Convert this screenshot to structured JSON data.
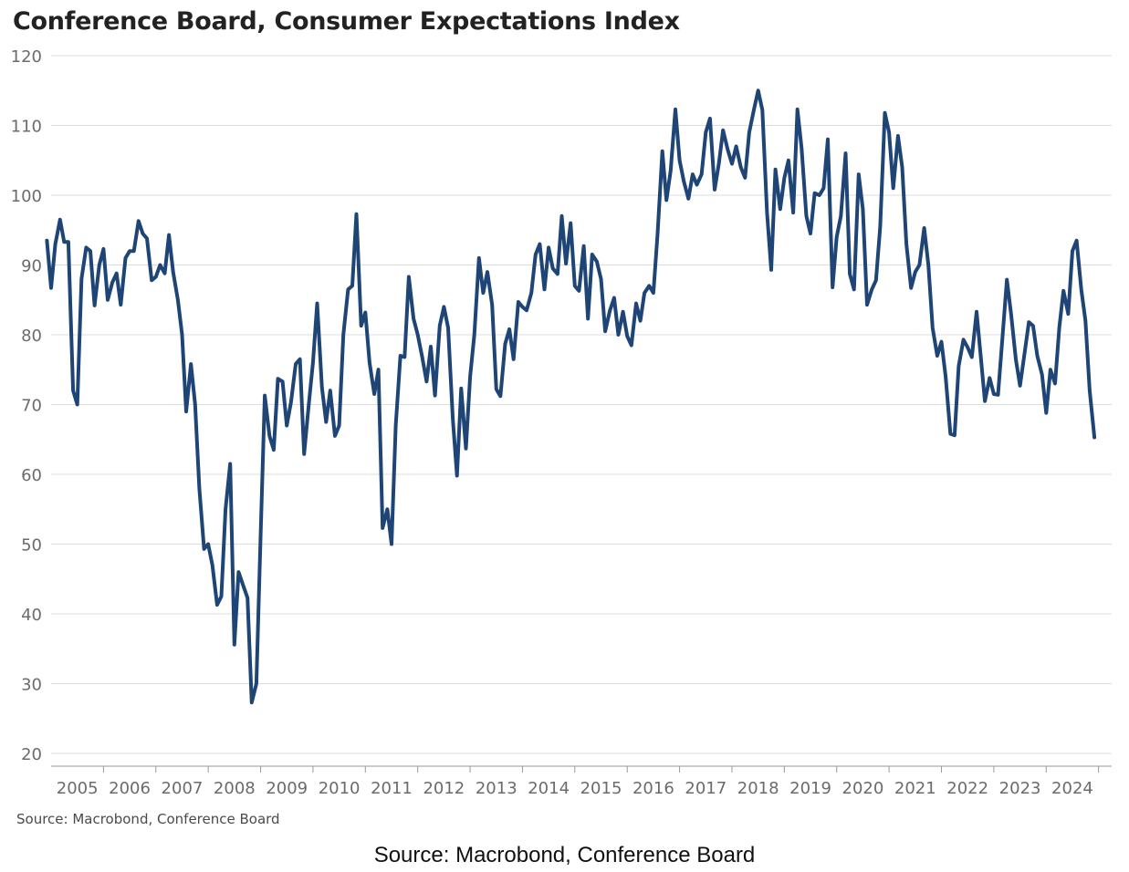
{
  "title": "Conference Board, Consumer Expectations Index",
  "source_note": "Source: Macrobond, Conference Board",
  "caption": "Source: Macrobond, Conference Board",
  "chart_data": {
    "type": "line",
    "title": "Conference Board, Consumer Expectations Index",
    "xlabel": "",
    "ylabel": "",
    "xlim": [
      2005,
      2025.25
    ],
    "ylim": [
      20,
      120
    ],
    "yticks": [
      20,
      30,
      40,
      50,
      60,
      70,
      80,
      90,
      100,
      110,
      120
    ],
    "year_labels": [
      "2005",
      "2006",
      "2007",
      "2008",
      "2009",
      "2010",
      "2011",
      "2012",
      "2013",
      "2014",
      "2015",
      "2016",
      "2017",
      "2018",
      "2019",
      "2020",
      "2021",
      "2022",
      "2023",
      "2024"
    ],
    "grid": "horizontal",
    "legend": "none",
    "series": [
      {
        "color": "#1f4576",
        "points": [
          [
            2004.92,
            93.5
          ],
          [
            2005.0,
            86.7
          ],
          [
            2005.08,
            93.0
          ],
          [
            2005.17,
            96.5
          ],
          [
            2005.25,
            93.3
          ],
          [
            2005.33,
            93.3
          ],
          [
            2005.42,
            72.0
          ],
          [
            2005.5,
            70.0
          ],
          [
            2005.58,
            88.0
          ],
          [
            2005.67,
            92.5
          ],
          [
            2005.75,
            92.0
          ],
          [
            2005.83,
            84.2
          ],
          [
            2005.92,
            90.0
          ],
          [
            2006.0,
            92.3
          ],
          [
            2006.08,
            85.0
          ],
          [
            2006.17,
            87.5
          ],
          [
            2006.25,
            88.8
          ],
          [
            2006.33,
            84.3
          ],
          [
            2006.42,
            91.0
          ],
          [
            2006.5,
            92.0
          ],
          [
            2006.58,
            92.0
          ],
          [
            2006.67,
            96.3
          ],
          [
            2006.75,
            94.5
          ],
          [
            2006.83,
            93.8
          ],
          [
            2006.92,
            87.8
          ],
          [
            2007.0,
            88.3
          ],
          [
            2007.08,
            90.0
          ],
          [
            2007.17,
            88.8
          ],
          [
            2007.25,
            94.3
          ],
          [
            2007.33,
            89.0
          ],
          [
            2007.42,
            85.0
          ],
          [
            2007.5,
            80.0
          ],
          [
            2007.58,
            69.0
          ],
          [
            2007.67,
            75.8
          ],
          [
            2007.75,
            70.0
          ],
          [
            2007.83,
            58.0
          ],
          [
            2007.92,
            49.3
          ],
          [
            2008.0,
            50.0
          ],
          [
            2008.08,
            47.0
          ],
          [
            2008.17,
            41.3
          ],
          [
            2008.25,
            42.5
          ],
          [
            2008.33,
            55.0
          ],
          [
            2008.42,
            61.5
          ],
          [
            2008.5,
            35.6
          ],
          [
            2008.58,
            46.0
          ],
          [
            2008.67,
            44.0
          ],
          [
            2008.75,
            42.3
          ],
          [
            2008.83,
            27.3
          ],
          [
            2008.92,
            30.0
          ],
          [
            2009.0,
            51.0
          ],
          [
            2009.08,
            71.3
          ],
          [
            2009.17,
            65.5
          ],
          [
            2009.25,
            63.5
          ],
          [
            2009.33,
            73.7
          ],
          [
            2009.42,
            73.3
          ],
          [
            2009.5,
            67.0
          ],
          [
            2009.58,
            70.3
          ],
          [
            2009.67,
            75.8
          ],
          [
            2009.75,
            76.5
          ],
          [
            2009.83,
            62.9
          ],
          [
            2009.92,
            70.0
          ],
          [
            2010.0,
            76.0
          ],
          [
            2010.08,
            84.5
          ],
          [
            2010.17,
            72.5
          ],
          [
            2010.25,
            67.5
          ],
          [
            2010.33,
            72.0
          ],
          [
            2010.42,
            65.5
          ],
          [
            2010.5,
            67.0
          ],
          [
            2010.58,
            80.0
          ],
          [
            2010.67,
            86.5
          ],
          [
            2010.75,
            87.0
          ],
          [
            2010.83,
            97.3
          ],
          [
            2010.92,
            81.3
          ],
          [
            2011.0,
            83.2
          ],
          [
            2011.08,
            76.0
          ],
          [
            2011.17,
            71.5
          ],
          [
            2011.25,
            75.0
          ],
          [
            2011.33,
            52.3
          ],
          [
            2011.42,
            55.0
          ],
          [
            2011.5,
            50.0
          ],
          [
            2011.58,
            67.0
          ],
          [
            2011.67,
            77.0
          ],
          [
            2011.75,
            76.8
          ],
          [
            2011.83,
            88.3
          ],
          [
            2011.92,
            82.3
          ],
          [
            2012.0,
            80.0
          ],
          [
            2012.08,
            77.0
          ],
          [
            2012.17,
            73.3
          ],
          [
            2012.25,
            78.3
          ],
          [
            2012.33,
            71.3
          ],
          [
            2012.42,
            81.3
          ],
          [
            2012.5,
            84.0
          ],
          [
            2012.58,
            81.0
          ],
          [
            2012.67,
            68.0
          ],
          [
            2012.75,
            59.8
          ],
          [
            2012.83,
            72.3
          ],
          [
            2012.92,
            63.7
          ],
          [
            2013.0,
            74.0
          ],
          [
            2013.08,
            80.0
          ],
          [
            2013.17,
            91.0
          ],
          [
            2013.25,
            86.0
          ],
          [
            2013.33,
            89.0
          ],
          [
            2013.42,
            84.3
          ],
          [
            2013.5,
            72.2
          ],
          [
            2013.58,
            71.2
          ],
          [
            2013.67,
            78.7
          ],
          [
            2013.75,
            80.8
          ],
          [
            2013.83,
            76.5
          ],
          [
            2013.92,
            84.7
          ],
          [
            2014.0,
            84.0
          ],
          [
            2014.08,
            83.5
          ],
          [
            2014.17,
            86.0
          ],
          [
            2014.25,
            91.5
          ],
          [
            2014.33,
            93.0
          ],
          [
            2014.42,
            86.5
          ],
          [
            2014.5,
            92.5
          ],
          [
            2014.58,
            89.5
          ],
          [
            2014.67,
            88.7
          ],
          [
            2014.75,
            97.0
          ],
          [
            2014.83,
            90.2
          ],
          [
            2014.92,
            96.0
          ],
          [
            2015.0,
            87.0
          ],
          [
            2015.08,
            86.3
          ],
          [
            2015.17,
            92.7
          ],
          [
            2015.25,
            82.3
          ],
          [
            2015.33,
            91.5
          ],
          [
            2015.42,
            90.5
          ],
          [
            2015.5,
            88.0
          ],
          [
            2015.58,
            80.5
          ],
          [
            2015.67,
            83.5
          ],
          [
            2015.75,
            85.3
          ],
          [
            2015.83,
            80.0
          ],
          [
            2015.92,
            83.3
          ],
          [
            2016.0,
            79.8
          ],
          [
            2016.08,
            78.5
          ],
          [
            2016.17,
            84.5
          ],
          [
            2016.25,
            82.0
          ],
          [
            2016.33,
            86.0
          ],
          [
            2016.42,
            87.0
          ],
          [
            2016.5,
            86.0
          ],
          [
            2016.58,
            94.5
          ],
          [
            2016.67,
            106.3
          ],
          [
            2016.75,
            99.3
          ],
          [
            2016.83,
            103.5
          ],
          [
            2016.92,
            112.3
          ],
          [
            2017.0,
            105.0
          ],
          [
            2017.08,
            102.0
          ],
          [
            2017.17,
            99.5
          ],
          [
            2017.25,
            103.0
          ],
          [
            2017.33,
            101.5
          ],
          [
            2017.42,
            103.0
          ],
          [
            2017.5,
            109.0
          ],
          [
            2017.58,
            111.0
          ],
          [
            2017.67,
            100.8
          ],
          [
            2017.75,
            104.5
          ],
          [
            2017.83,
            109.3
          ],
          [
            2017.92,
            106.5
          ],
          [
            2018.0,
            104.5
          ],
          [
            2018.08,
            107.0
          ],
          [
            2018.17,
            104.0
          ],
          [
            2018.25,
            102.5
          ],
          [
            2018.33,
            109.0
          ],
          [
            2018.42,
            112.3
          ],
          [
            2018.5,
            115.0
          ],
          [
            2018.58,
            112.2
          ],
          [
            2018.67,
            97.5
          ],
          [
            2018.75,
            89.3
          ],
          [
            2018.83,
            103.7
          ],
          [
            2018.92,
            98.0
          ],
          [
            2019.0,
            102.5
          ],
          [
            2019.08,
            105.0
          ],
          [
            2019.17,
            97.5
          ],
          [
            2019.25,
            112.3
          ],
          [
            2019.33,
            106.7
          ],
          [
            2019.42,
            97.0
          ],
          [
            2019.5,
            94.5
          ],
          [
            2019.58,
            100.3
          ],
          [
            2019.67,
            100.0
          ],
          [
            2019.75,
            101.0
          ],
          [
            2019.83,
            108.0
          ],
          [
            2019.92,
            86.8
          ],
          [
            2020.0,
            94.0
          ],
          [
            2020.08,
            97.0
          ],
          [
            2020.17,
            106.0
          ],
          [
            2020.25,
            88.7
          ],
          [
            2020.33,
            86.5
          ],
          [
            2020.42,
            103.0
          ],
          [
            2020.5,
            98.0
          ],
          [
            2020.58,
            84.3
          ],
          [
            2020.67,
            86.5
          ],
          [
            2020.75,
            87.8
          ],
          [
            2020.83,
            95.5
          ],
          [
            2020.92,
            111.8
          ],
          [
            2021.0,
            109.0
          ],
          [
            2021.08,
            101.0
          ],
          [
            2021.17,
            108.5
          ],
          [
            2021.25,
            104.0
          ],
          [
            2021.33,
            93.0
          ],
          [
            2021.42,
            86.7
          ],
          [
            2021.5,
            89.0
          ],
          [
            2021.58,
            90.0
          ],
          [
            2021.67,
            95.3
          ],
          [
            2021.75,
            90.0
          ],
          [
            2021.83,
            81.0
          ],
          [
            2021.92,
            77.0
          ],
          [
            2022.0,
            79.0
          ],
          [
            2022.08,
            74.0
          ],
          [
            2022.17,
            65.8
          ],
          [
            2022.25,
            65.6
          ],
          [
            2022.33,
            75.5
          ],
          [
            2022.42,
            79.3
          ],
          [
            2022.5,
            78.2
          ],
          [
            2022.58,
            76.8
          ],
          [
            2022.67,
            83.3
          ],
          [
            2022.75,
            77.0
          ],
          [
            2022.83,
            70.5
          ],
          [
            2022.92,
            73.8
          ],
          [
            2023.0,
            71.5
          ],
          [
            2023.08,
            71.4
          ],
          [
            2023.17,
            80.0
          ],
          [
            2023.25,
            87.9
          ],
          [
            2023.33,
            83.0
          ],
          [
            2023.42,
            76.5
          ],
          [
            2023.5,
            72.7
          ],
          [
            2023.58,
            77.0
          ],
          [
            2023.67,
            81.8
          ],
          [
            2023.75,
            81.3
          ],
          [
            2023.83,
            77.0
          ],
          [
            2023.92,
            74.3
          ],
          [
            2024.0,
            68.8
          ],
          [
            2024.08,
            75.0
          ],
          [
            2024.17,
            73.0
          ],
          [
            2024.25,
            81.0
          ],
          [
            2024.33,
            86.3
          ],
          [
            2024.42,
            83.0
          ],
          [
            2024.5,
            92.0
          ],
          [
            2024.58,
            93.5
          ],
          [
            2024.67,
            86.5
          ],
          [
            2024.75,
            82.0
          ],
          [
            2024.83,
            72.0
          ],
          [
            2024.92,
            65.3
          ]
        ]
      }
    ]
  }
}
